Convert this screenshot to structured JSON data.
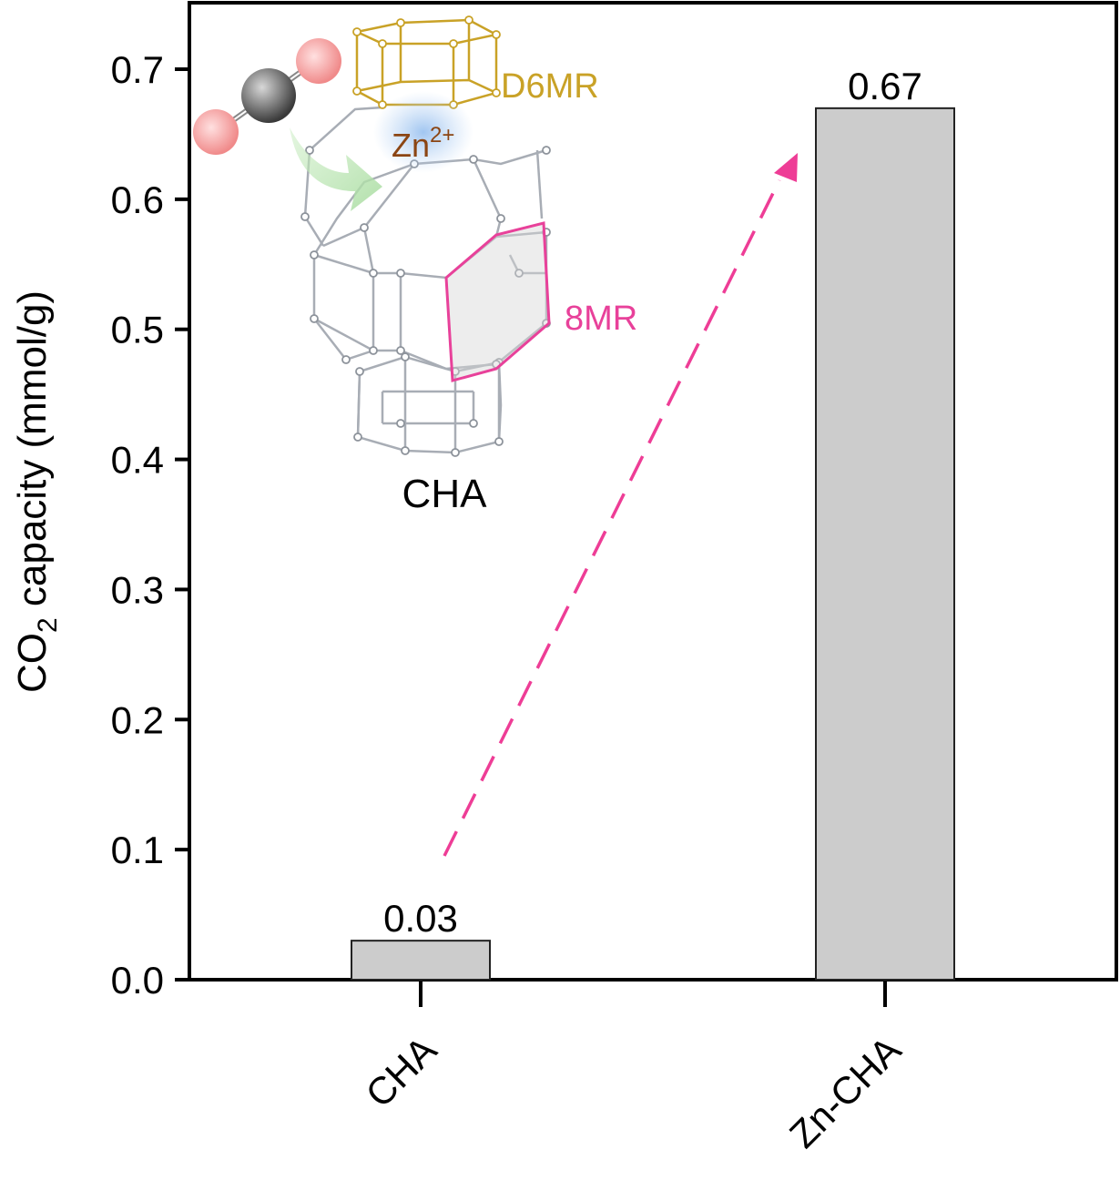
{
  "chart_data": {
    "type": "bar",
    "categories": [
      "CHA",
      "Zn-CHA"
    ],
    "values": [
      0.03,
      0.67
    ],
    "data_labels": [
      "0.03",
      "0.67"
    ],
    "ylabel": "capacity (mmol/g)",
    "ylabel_prefix": "CO",
    "ylabel_subscript": "2",
    "ylim": [
      0,
      0.75
    ],
    "yticks": [
      0.0,
      0.1,
      0.2,
      0.3,
      0.4,
      0.5,
      0.6,
      0.7
    ],
    "ytick_labels": [
      "0.0",
      "0.1",
      "0.2",
      "0.3",
      "0.4",
      "0.5",
      "0.6",
      "0.7"
    ],
    "bar_color": "#cccccc",
    "grid": false,
    "annotations": [
      {
        "text": "D6MR",
        "color": "#c9a227"
      },
      {
        "text": "Zn",
        "superscript": "2+",
        "color": "#8b4513"
      },
      {
        "text": "8MR",
        "color": "#e8419a"
      },
      {
        "text": "CHA",
        "color": "#000000"
      }
    ],
    "arrow_color": "#ee3d96"
  }
}
